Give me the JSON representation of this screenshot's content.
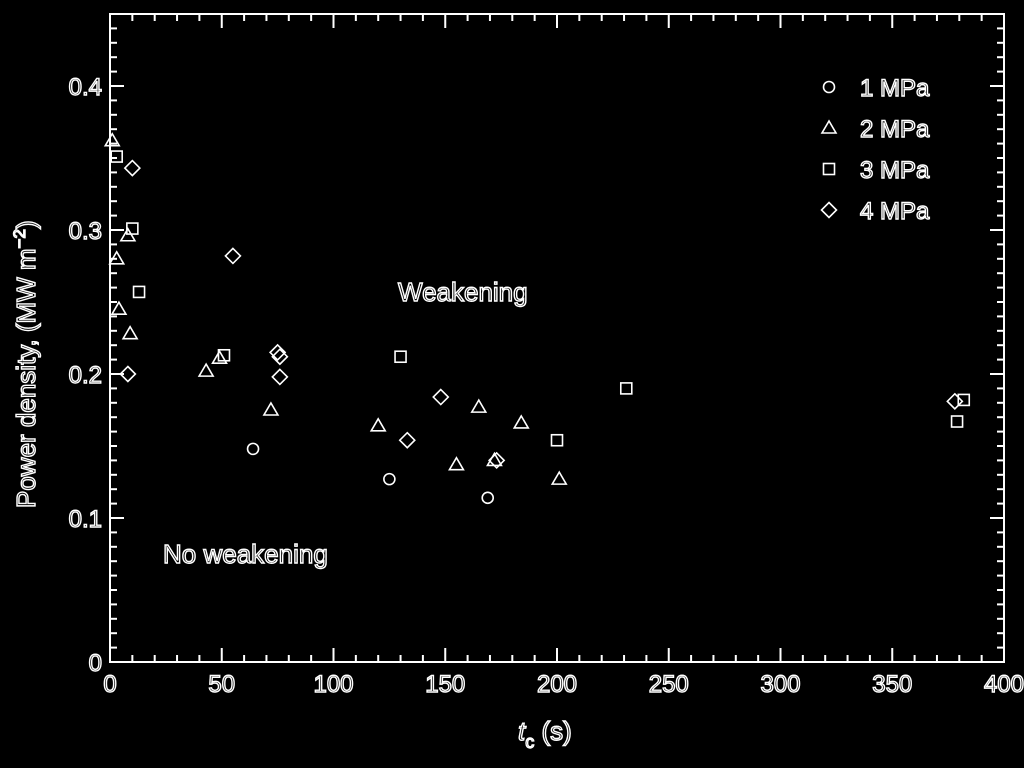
{
  "chart_data": {
    "type": "scatter",
    "xlabel_main": "t",
    "xlabel_sub": "c",
    "xlabel_unit": " (s)",
    "ylabel": "Power density, (MW m",
    "ylabel_sup": "−2",
    "ylabel_end": ")",
    "xlim": [
      0,
      400
    ],
    "ylim": [
      0,
      0.45
    ],
    "x_ticks": [
      "0",
      "50",
      "100",
      "150",
      "200",
      "250",
      "300",
      "350",
      "400"
    ],
    "y_ticks": [
      "0",
      "0.1",
      "0.2",
      "0.3",
      "0.4"
    ],
    "annotations": {
      "upper": "Weakening",
      "lower": "No weakening"
    },
    "legend_position": "top-right",
    "series": [
      {
        "name": "1 MPa",
        "marker": "circle",
        "points": [
          [
            64,
            0.148
          ],
          [
            125,
            0.127
          ],
          [
            169,
            0.114
          ]
        ]
      },
      {
        "name": "2 MPa",
        "marker": "triangle",
        "points": [
          [
            1,
            0.362
          ],
          [
            3,
            0.28
          ],
          [
            4,
            0.245
          ],
          [
            8,
            0.296
          ],
          [
            9,
            0.228
          ],
          [
            43,
            0.202
          ],
          [
            49,
            0.211
          ],
          [
            72,
            0.175
          ],
          [
            120,
            0.164
          ],
          [
            155,
            0.137
          ],
          [
            165,
            0.177
          ],
          [
            184,
            0.166
          ],
          [
            201,
            0.127
          ],
          [
            172,
            0.14
          ]
        ]
      },
      {
        "name": "3 MPa",
        "marker": "square",
        "points": [
          [
            3,
            0.351
          ],
          [
            10,
            0.301
          ],
          [
            13,
            0.257
          ],
          [
            51,
            0.213
          ],
          [
            130,
            0.212
          ],
          [
            200,
            0.154
          ],
          [
            231,
            0.19
          ],
          [
            382,
            0.182
          ],
          [
            379,
            0.167
          ]
        ]
      },
      {
        "name": "4 MPa",
        "marker": "diamond",
        "points": [
          [
            10,
            0.343
          ],
          [
            8,
            0.2
          ],
          [
            55,
            0.282
          ],
          [
            75,
            0.215
          ],
          [
            76,
            0.212
          ],
          [
            76,
            0.198
          ],
          [
            133,
            0.154
          ],
          [
            148,
            0.184
          ],
          [
            173,
            0.14
          ],
          [
            378,
            0.181
          ]
        ]
      }
    ]
  }
}
